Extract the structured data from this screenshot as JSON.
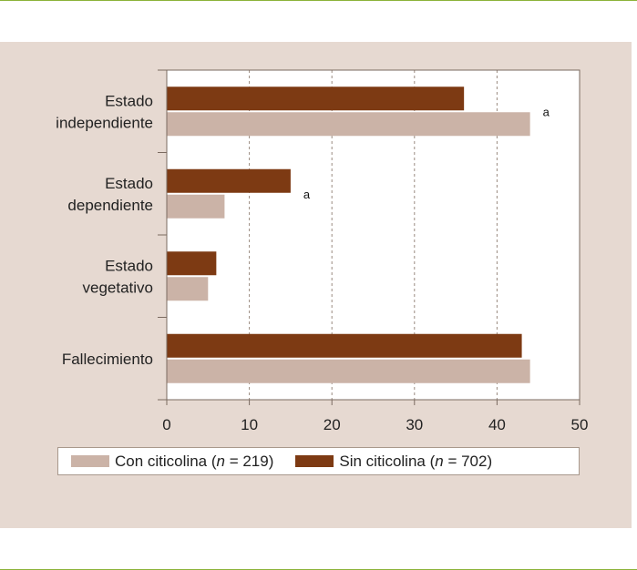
{
  "chart_data": {
    "type": "bar",
    "orientation": "horizontal",
    "categories": [
      [
        "Estado",
        "independiente"
      ],
      [
        "Estado",
        "dependiente"
      ],
      [
        "Estado",
        "vegetativo"
      ],
      [
        "Fallecimiento"
      ]
    ],
    "series": [
      {
        "name": "Sin citicolina (n = 702)",
        "color": "#7d3a13",
        "values": [
          36,
          15,
          6,
          43
        ]
      },
      {
        "name": "Con citicolina (n = 219)",
        "color": "#cbb3a7",
        "values": [
          44,
          7,
          5,
          44
        ]
      }
    ],
    "xlim": [
      0,
      50
    ],
    "xticks": [
      0,
      10,
      20,
      30,
      40,
      50
    ],
    "grid": "vertical-dashed",
    "annotations": [
      {
        "text": "a",
        "category": 0
      },
      {
        "text": "a",
        "category": 1
      }
    ],
    "legend": {
      "placement": "bottom",
      "items": [
        {
          "label": "Con citicolina (",
          "var": "n",
          "rest": " = 219)",
          "color": "#cbb3a7"
        },
        {
          "label": "Sin citicolina (",
          "var": "n",
          "rest": " = 702)",
          "color": "#7d3a13"
        }
      ]
    }
  }
}
